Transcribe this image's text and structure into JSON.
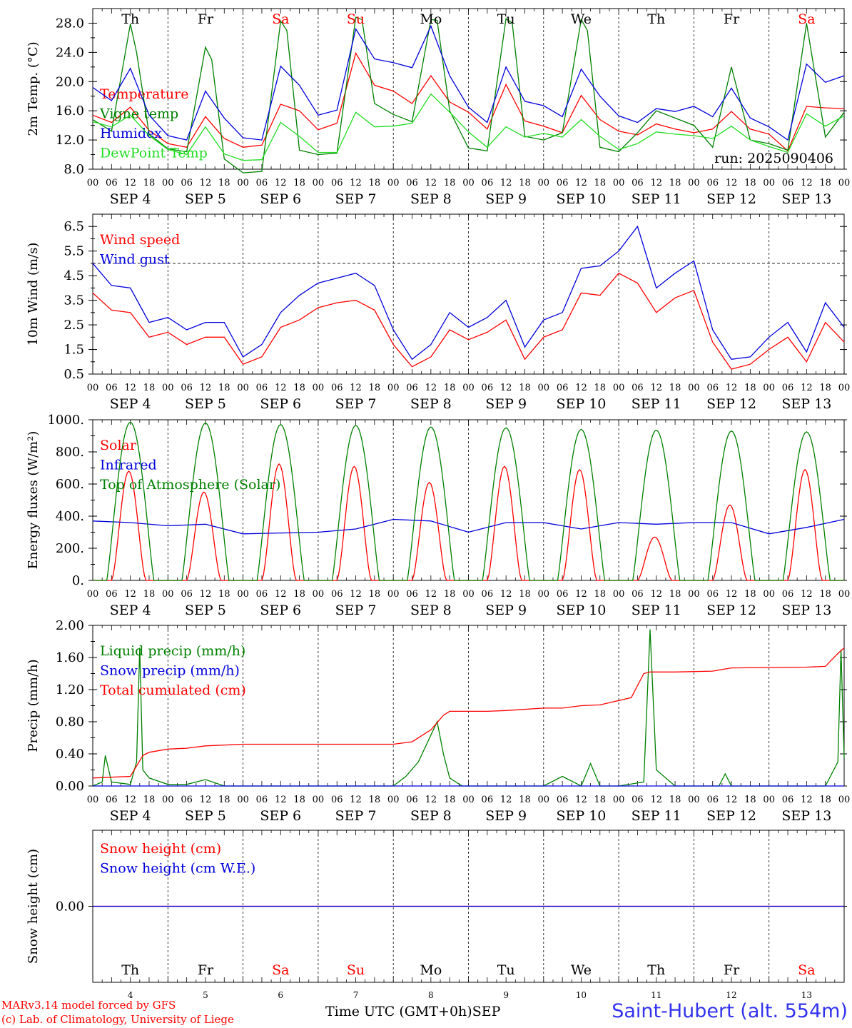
{
  "colors": {
    "red": "#ff0000",
    "green": "#008000",
    "blue": "#0000dd",
    "lightgreen": "#22dd22",
    "axis": "#000000",
    "weekend": "#ff0000"
  },
  "weekdays": [
    "Th",
    "Fr",
    "Sa",
    "Su",
    "Mo",
    "Tu",
    "We",
    "Th",
    "Fr",
    "Sa"
  ],
  "weekend_flags": [
    false,
    false,
    true,
    true,
    false,
    false,
    false,
    false,
    false,
    true
  ],
  "date_labels": [
    "SEP  4",
    "SEP  5",
    "SEP  6",
    "SEP  7",
    "SEP  8",
    "SEP  9",
    "SEP 10",
    "SEP 11",
    "SEP 12",
    "SEP 13"
  ],
  "day_numbers": [
    "4",
    "5",
    "6",
    "7",
    "8",
    "9",
    "10",
    "11",
    "12",
    "13"
  ],
  "hour_labels": [
    "00",
    "06",
    "12",
    "18"
  ],
  "footer": {
    "model": "MARv3.14 model forced by GFS",
    "copyright": "(c) Lab. of Climatology, University of Liege",
    "xlabel": "Time UTC (GMT+0h)",
    "month": "SEP",
    "station": "Saint-Hubert (alt. 554m)"
  },
  "chart_data": [
    {
      "type": "line",
      "ylabel": "2m Temp. (°C)",
      "ylim": [
        8,
        30
      ],
      "yticks": [
        "8.0",
        "12.0",
        "16.0",
        "20.0",
        "24.0",
        "28.0"
      ],
      "annotation": "run: 2025090406",
      "x_unit": "hours since SEP 4 00 UTC",
      "series": [
        {
          "name": "Temperature",
          "color": "red",
          "x": [
            0,
            6,
            12,
            18,
            24,
            30,
            36,
            42,
            48,
            54,
            60,
            66,
            72,
            78,
            84,
            90,
            96,
            102,
            108,
            114,
            120,
            126,
            132,
            138,
            144,
            150,
            156,
            162,
            168,
            174,
            180,
            186,
            192,
            198,
            204,
            210,
            216,
            222,
            228,
            234,
            240
          ],
          "y": [
            15.4,
            14.4,
            16.5,
            13.3,
            11.5,
            11.0,
            15.2,
            12.2,
            11.0,
            11.3,
            16.9,
            16.0,
            13.4,
            14.3,
            23.9,
            19.5,
            18.7,
            17.0,
            20.8,
            17.2,
            15.8,
            13.5,
            19.6,
            14.6,
            13.9,
            13.0,
            18.1,
            14.8,
            13.2,
            12.7,
            14.2,
            13.5,
            13.0,
            13.5,
            15.9,
            13.5,
            12.8,
            10.5,
            16.6,
            16.4,
            16.3
          ]
        },
        {
          "name": "Vigne temp",
          "color": "green",
          "x": [
            0,
            6,
            12,
            14,
            18,
            24,
            30,
            36,
            38,
            42,
            48,
            54,
            60,
            62,
            66,
            72,
            78,
            84,
            86,
            90,
            96,
            102,
            108,
            110,
            114,
            120,
            126,
            132,
            134,
            138,
            144,
            150,
            156,
            158,
            162,
            168,
            174,
            180,
            186,
            192,
            198,
            204,
            210,
            216,
            222,
            228,
            234,
            240
          ],
          "y": [
            14.8,
            13.2,
            27.9,
            24.0,
            12.8,
            10.8,
            10.4,
            24.7,
            23.0,
            9.4,
            7.5,
            7.7,
            28.3,
            27.0,
            10.6,
            10.0,
            10.2,
            28.8,
            28.5,
            17.0,
            15.5,
            14.5,
            28.5,
            28.4,
            16.0,
            10.9,
            10.5,
            28.6,
            28.0,
            12.5,
            12.0,
            13.0,
            28.5,
            27.0,
            11.0,
            10.4,
            13.0,
            16.0,
            15.0,
            14.0,
            11.0,
            22.0,
            12.0,
            11.5,
            10.6,
            28.0,
            12.4,
            15.8
          ]
        },
        {
          "name": "Humidex",
          "color": "blue",
          "x": [
            0,
            6,
            12,
            18,
            24,
            30,
            36,
            42,
            48,
            54,
            60,
            66,
            72,
            78,
            84,
            90,
            96,
            102,
            108,
            114,
            120,
            126,
            132,
            138,
            144,
            150,
            156,
            162,
            168,
            174,
            180,
            186,
            192,
            198,
            204,
            210,
            216,
            222,
            228,
            234,
            240
          ],
          "y": [
            19.2,
            17.4,
            21.8,
            15.4,
            12.6,
            12.0,
            18.7,
            15.0,
            12.3,
            12.0,
            22.1,
            19.5,
            15.4,
            16.1,
            27.2,
            23.1,
            22.6,
            21.9,
            27.6,
            20.8,
            16.5,
            14.4,
            22.0,
            17.3,
            16.7,
            15.2,
            21.7,
            18.0,
            15.3,
            14.4,
            16.3,
            15.9,
            16.6,
            15.2,
            19.1,
            15.0,
            13.8,
            12.0,
            22.4,
            19.9,
            20.8
          ]
        },
        {
          "name": "DewPoint Temp",
          "color": "lightgreen",
          "x": [
            0,
            6,
            12,
            18,
            24,
            30,
            36,
            42,
            48,
            54,
            60,
            66,
            72,
            78,
            84,
            90,
            96,
            102,
            108,
            114,
            120,
            126,
            132,
            138,
            144,
            150,
            156,
            162,
            168,
            174,
            180,
            186,
            192,
            198,
            204,
            210,
            216,
            222,
            228,
            234,
            240
          ],
          "y": [
            14.5,
            13.8,
            15.4,
            12.6,
            10.7,
            10.0,
            13.8,
            10.1,
            9.2,
            9.3,
            14.4,
            12.5,
            10.3,
            10.3,
            15.8,
            13.8,
            13.9,
            14.3,
            18.3,
            15.8,
            13.1,
            11.0,
            13.8,
            12.4,
            12.9,
            12.4,
            14.8,
            12.5,
            10.7,
            11.5,
            13.1,
            12.8,
            12.6,
            12.2,
            13.9,
            12.0,
            11.1,
            10.3,
            15.6,
            13.9,
            15.3
          ]
        }
      ]
    },
    {
      "type": "line",
      "ylabel": "10m Wind (m/s)",
      "ylim": [
        0.5,
        7.0
      ],
      "yticks": [
        "0.5",
        "1.5",
        "2.5",
        "3.5",
        "4.5",
        "5.5",
        "6.5"
      ],
      "reference_line": 5.0,
      "x_unit": "hours since SEP 4 00 UTC",
      "series": [
        {
          "name": "Wind speed",
          "color": "red",
          "x": [
            0,
            6,
            12,
            18,
            24,
            30,
            36,
            42,
            48,
            54,
            60,
            66,
            72,
            78,
            84,
            90,
            96,
            102,
            108,
            114,
            120,
            126,
            132,
            138,
            144,
            150,
            156,
            162,
            168,
            174,
            180,
            186,
            192,
            198,
            204,
            210,
            216,
            222,
            228,
            234,
            240
          ],
          "y": [
            3.8,
            3.1,
            3.0,
            2.0,
            2.2,
            1.7,
            2.0,
            2.0,
            0.9,
            1.2,
            2.4,
            2.7,
            3.2,
            3.4,
            3.5,
            3.1,
            1.7,
            0.8,
            1.2,
            2.3,
            1.9,
            2.2,
            2.7,
            1.1,
            2.0,
            2.3,
            3.8,
            3.7,
            4.6,
            4.2,
            3.0,
            3.6,
            3.9,
            1.8,
            0.7,
            0.9,
            1.5,
            2.0,
            1.0,
            2.6,
            1.8
          ]
        },
        {
          "name": "Wind gust",
          "color": "blue",
          "x": [
            0,
            6,
            12,
            18,
            24,
            30,
            36,
            42,
            48,
            54,
            60,
            66,
            72,
            78,
            84,
            90,
            96,
            102,
            108,
            114,
            120,
            126,
            132,
            138,
            144,
            150,
            156,
            162,
            168,
            174,
            180,
            186,
            192,
            198,
            204,
            210,
            216,
            222,
            228,
            234,
            240
          ],
          "y": [
            5.0,
            4.1,
            4.0,
            2.6,
            2.8,
            2.3,
            2.6,
            2.6,
            1.2,
            1.7,
            3.0,
            3.7,
            4.2,
            4.4,
            4.6,
            4.1,
            2.3,
            1.1,
            1.7,
            3.0,
            2.4,
            2.8,
            3.5,
            1.6,
            2.7,
            3.0,
            4.8,
            4.9,
            5.5,
            6.5,
            4.0,
            4.6,
            5.1,
            2.3,
            1.1,
            1.2,
            2.0,
            2.6,
            1.4,
            3.4,
            2.4
          ]
        }
      ]
    },
    {
      "type": "line",
      "ylabel": "Energy fluxes (W/m²)",
      "ylim": [
        0,
        1000
      ],
      "yticks": [
        "0.",
        "200.",
        "400.",
        "600.",
        "800.",
        "1000."
      ],
      "x_unit": "hours since SEP 4 00 UTC",
      "series": [
        {
          "name": "Solar",
          "color": "red",
          "peaks": [
            680,
            550,
            725,
            710,
            610,
            710,
            690,
            270,
            470,
            690
          ]
        },
        {
          "name": "Infrared",
          "color": "blue",
          "x": [
            0,
            12,
            24,
            36,
            48,
            60,
            72,
            84,
            96,
            108,
            120,
            132,
            144,
            156,
            168,
            180,
            192,
            204,
            216,
            228,
            240
          ],
          "y": [
            370,
            360,
            340,
            350,
            290,
            295,
            300,
            320,
            380,
            370,
            300,
            360,
            360,
            320,
            360,
            350,
            360,
            360,
            290,
            330,
            380
          ]
        },
        {
          "name": "Top of Atmosphere (Solar)",
          "color": "green",
          "peaks": [
            985,
            980,
            970,
            965,
            955,
            950,
            940,
            935,
            930,
            925
          ]
        }
      ]
    },
    {
      "type": "line",
      "ylabel": "Precip (mm/h)",
      "ylim": [
        0,
        2.0
      ],
      "yticks": [
        "0.00",
        "0.40",
        "0.80",
        "1.20",
        "1.60",
        "2.00"
      ],
      "x_unit": "hours since SEP 4 00 UTC",
      "series": [
        {
          "name": "Liquid precip (mm/h)",
          "color": "green",
          "x": [
            0,
            3,
            4,
            6,
            12,
            14,
            15,
            16,
            18,
            24,
            30,
            36,
            42,
            96,
            100,
            104,
            110,
            112,
            114,
            118,
            144,
            150,
            156,
            159,
            162,
            168,
            176,
            178,
            180,
            186,
            200,
            202,
            204,
            210,
            234,
            238,
            239,
            240
          ],
          "y": [
            0,
            0.05,
            0.38,
            0.05,
            0.02,
            0.3,
            1.72,
            0.2,
            0.1,
            0.02,
            0.02,
            0.08,
            0,
            0,
            0.12,
            0.3,
            0.8,
            0.4,
            0.1,
            0,
            0,
            0.12,
            0,
            0.28,
            0,
            0,
            0.05,
            1.95,
            0.2,
            0,
            0,
            0.15,
            0,
            0,
            0,
            0.3,
            1.7,
            0.35
          ]
        },
        {
          "name": "Snow precip (mm/h)",
          "color": "blue",
          "x": [
            0,
            240
          ],
          "y": [
            0,
            0
          ]
        },
        {
          "name": "Total cumulated (cm)",
          "color": "red",
          "x": [
            0,
            12,
            16,
            18,
            24,
            30,
            36,
            48,
            96,
            102,
            108,
            112,
            114,
            126,
            132,
            144,
            150,
            156,
            162,
            172,
            176,
            178,
            186,
            198,
            204,
            228,
            234,
            238,
            240
          ],
          "y": [
            0.1,
            0.12,
            0.38,
            0.42,
            0.46,
            0.47,
            0.5,
            0.52,
            0.52,
            0.55,
            0.7,
            0.88,
            0.93,
            0.93,
            0.94,
            0.97,
            0.97,
            1.0,
            1.01,
            1.1,
            1.4,
            1.42,
            1.42,
            1.43,
            1.47,
            1.48,
            1.49,
            1.65,
            1.72
          ]
        }
      ]
    },
    {
      "type": "line",
      "ylabel": "Snow height (cm)",
      "yticks": [
        "0.00"
      ],
      "x_unit": "hours since SEP 4 00 UTC",
      "series": [
        {
          "name": "Snow height (cm)",
          "color": "red",
          "x": [
            0,
            240
          ],
          "y": [
            0,
            0
          ]
        },
        {
          "name": "Snow height (cm W.E.)",
          "color": "blue",
          "x": [
            0,
            240
          ],
          "y": [
            0,
            0
          ]
        }
      ]
    }
  ]
}
